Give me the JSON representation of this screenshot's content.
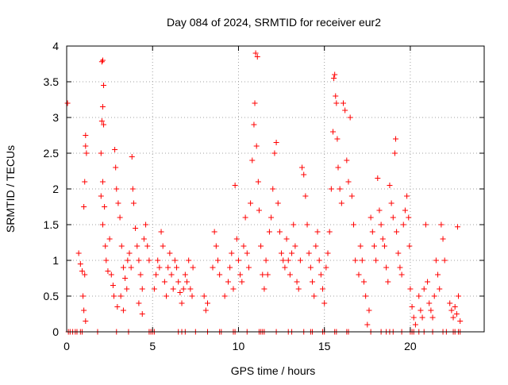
{
  "chart_data": {
    "type": "scatter",
    "title": "Day 084 of 2024, SRMTID for receiver eur2",
    "xlabel": "GPS time / hours",
    "ylabel": "SRMTID / TECUs",
    "xlim": [
      0,
      24.3
    ],
    "ylim": [
      0,
      4
    ],
    "x_ticks": [
      0,
      5,
      10,
      15,
      20
    ],
    "x_tick_labels": [
      "0",
      "5",
      "10",
      "15",
      "20"
    ],
    "y_ticks": [
      0,
      0.5,
      1,
      1.5,
      2,
      2.5,
      3,
      3.5,
      4
    ],
    "y_tick_labels": [
      "0",
      "0.5",
      "1",
      "1.5",
      "2",
      "2.5",
      "3",
      "3.5",
      "4"
    ],
    "grid": true,
    "marker": "plus",
    "series": [
      {
        "name": "SRMTID",
        "color": "#ff0000",
        "points": [
          [
            0.05,
            3.2
          ],
          [
            0.7,
            1.1
          ],
          [
            0.8,
            0.95
          ],
          [
            0.9,
            0.85
          ],
          [
            0.95,
            0.5
          ],
          [
            1.0,
            1.75
          ],
          [
            1.05,
            2.1
          ],
          [
            1.1,
            2.6
          ],
          [
            1.15,
            2.5
          ],
          [
            1.1,
            2.75
          ],
          [
            1.0,
            0.3
          ],
          [
            1.1,
            0.15
          ],
          [
            1.05,
            0.8
          ],
          [
            2.05,
            3.78
          ],
          [
            2.1,
            3.8
          ],
          [
            2.15,
            3.45
          ],
          [
            2.1,
            3.15
          ],
          [
            2.05,
            2.95
          ],
          [
            2.15,
            2.9
          ],
          [
            2.0,
            2.5
          ],
          [
            2.1,
            2.1
          ],
          [
            2.0,
            1.9
          ],
          [
            2.2,
            1.75
          ],
          [
            2.1,
            1.5
          ],
          [
            2.25,
            1.2
          ],
          [
            2.3,
            1.0
          ],
          [
            2.4,
            0.85
          ],
          [
            2.5,
            1.3
          ],
          [
            2.6,
            0.8
          ],
          [
            2.7,
            0.65
          ],
          [
            2.8,
            2.55
          ],
          [
            2.85,
            2.3
          ],
          [
            2.9,
            2.0
          ],
          [
            3.0,
            1.8
          ],
          [
            3.1,
            1.6
          ],
          [
            3.2,
            1.2
          ],
          [
            3.3,
            0.9
          ],
          [
            3.4,
            0.75
          ],
          [
            3.5,
            0.6
          ],
          [
            2.75,
            0.5
          ],
          [
            2.95,
            0.35
          ],
          [
            3.15,
            0.5
          ],
          [
            3.3,
            0.3
          ],
          [
            3.55,
            1.0
          ],
          [
            3.65,
            1.1
          ],
          [
            3.75,
            0.9
          ],
          [
            3.8,
            2.45
          ],
          [
            3.85,
            2.0
          ],
          [
            3.9,
            1.8
          ],
          [
            4.0,
            1.45
          ],
          [
            4.1,
            1.2
          ],
          [
            4.2,
            1.0
          ],
          [
            4.3,
            0.8
          ],
          [
            4.4,
            0.6
          ],
          [
            4.5,
            1.3
          ],
          [
            4.6,
            1.5
          ],
          [
            4.7,
            1.2
          ],
          [
            4.8,
            1.0
          ],
          [
            4.4,
            0.25
          ],
          [
            4.2,
            0.4
          ],
          [
            5.1,
            0.6
          ],
          [
            5.2,
            0.8
          ],
          [
            5.3,
            1.0
          ],
          [
            5.4,
            0.9
          ],
          [
            5.5,
            1.4
          ],
          [
            5.6,
            1.2
          ],
          [
            5.7,
            0.7
          ],
          [
            5.8,
            0.5
          ],
          [
            5.9,
            0.9
          ],
          [
            6.0,
            1.1
          ],
          [
            6.1,
            0.8
          ],
          [
            6.2,
            0.6
          ],
          [
            6.3,
            1.0
          ],
          [
            6.4,
            0.9
          ],
          [
            6.5,
            0.7
          ],
          [
            6.6,
            0.55
          ],
          [
            6.7,
            0.4
          ],
          [
            6.8,
            0.6
          ],
          [
            6.9,
            0.8
          ],
          [
            7.0,
            0.7
          ],
          [
            7.1,
            1.0
          ],
          [
            7.2,
            0.6
          ],
          [
            7.3,
            0.5
          ],
          [
            7.35,
            0.9
          ],
          [
            8.0,
            0.5
          ],
          [
            8.1,
            0.3
          ],
          [
            8.2,
            0.4
          ],
          [
            8.5,
            0.9
          ],
          [
            8.6,
            1.4
          ],
          [
            8.7,
            1.2
          ],
          [
            8.8,
            1.0
          ],
          [
            8.9,
            0.8
          ],
          [
            9.2,
            0.5
          ],
          [
            9.4,
            0.7
          ],
          [
            9.5,
            0.9
          ],
          [
            9.6,
            1.1
          ],
          [
            9.7,
            0.6
          ],
          [
            9.8,
            2.05
          ],
          [
            9.9,
            1.3
          ],
          [
            10.0,
            1.0
          ],
          [
            10.1,
            0.8
          ],
          [
            10.2,
            0.7
          ],
          [
            10.3,
            1.2
          ],
          [
            10.4,
            1.6
          ],
          [
            10.5,
            1.1
          ],
          [
            10.6,
            0.9
          ],
          [
            10.7,
            1.8
          ],
          [
            10.8,
            2.4
          ],
          [
            10.9,
            2.9
          ],
          [
            10.95,
            3.2
          ],
          [
            11.0,
            3.9
          ],
          [
            11.1,
            3.85
          ],
          [
            11.05,
            2.6
          ],
          [
            11.15,
            2.1
          ],
          [
            11.2,
            1.7
          ],
          [
            11.3,
            1.2
          ],
          [
            11.4,
            0.8
          ],
          [
            11.5,
            0.6
          ],
          [
            11.6,
            1.0
          ],
          [
            11.7,
            0.8
          ],
          [
            11.8,
            1.4
          ],
          [
            11.9,
            1.6
          ],
          [
            12.0,
            2.0
          ],
          [
            12.1,
            2.5
          ],
          [
            12.2,
            2.65
          ],
          [
            12.3,
            1.8
          ],
          [
            12.4,
            1.4
          ],
          [
            12.5,
            1.1
          ],
          [
            12.6,
            1.0
          ],
          [
            12.7,
            0.9
          ],
          [
            12.8,
            1.3
          ],
          [
            12.9,
            1.0
          ],
          [
            13.0,
            0.8
          ],
          [
            13.1,
            1.1
          ],
          [
            13.2,
            1.5
          ],
          [
            13.3,
            1.2
          ],
          [
            13.4,
            0.7
          ],
          [
            13.5,
            0.6
          ],
          [
            13.6,
            1.0
          ],
          [
            13.7,
            2.3
          ],
          [
            13.8,
            2.2
          ],
          [
            13.9,
            1.9
          ],
          [
            14.0,
            1.5
          ],
          [
            14.1,
            1.1
          ],
          [
            14.2,
            0.9
          ],
          [
            14.3,
            0.7
          ],
          [
            14.4,
            0.5
          ],
          [
            14.5,
            1.2
          ],
          [
            14.6,
            1.4
          ],
          [
            14.7,
            1.0
          ],
          [
            14.8,
            0.8
          ],
          [
            14.9,
            0.6
          ],
          [
            15.0,
            0.4
          ],
          [
            15.1,
            0.9
          ],
          [
            15.2,
            1.1
          ],
          [
            15.3,
            1.4
          ],
          [
            15.4,
            2.0
          ],
          [
            15.5,
            2.8
          ],
          [
            15.55,
            3.55
          ],
          [
            15.6,
            3.6
          ],
          [
            15.65,
            3.3
          ],
          [
            15.7,
            3.2
          ],
          [
            15.75,
            2.7
          ],
          [
            15.8,
            2.3
          ],
          [
            15.9,
            2.0
          ],
          [
            16.0,
            1.8
          ],
          [
            16.1,
            3.2
          ],
          [
            16.2,
            3.1
          ],
          [
            16.3,
            2.4
          ],
          [
            16.4,
            2.1
          ],
          [
            16.5,
            3.0
          ],
          [
            16.6,
            1.9
          ],
          [
            16.7,
            1.5
          ],
          [
            16.8,
            1.0
          ],
          [
            17.0,
            0.8
          ],
          [
            17.1,
            1.2
          ],
          [
            17.2,
            1.0
          ],
          [
            17.3,
            0.7
          ],
          [
            17.4,
            0.5
          ],
          [
            17.5,
            0.1
          ],
          [
            17.6,
            0.3
          ],
          [
            17.7,
            1.6
          ],
          [
            17.8,
            1.4
          ],
          [
            17.9,
            1.2
          ],
          [
            18.0,
            1.0
          ],
          [
            18.1,
            2.15
          ],
          [
            18.2,
            1.7
          ],
          [
            18.3,
            1.5
          ],
          [
            18.4,
            1.3
          ],
          [
            18.5,
            1.2
          ],
          [
            18.6,
            0.9
          ],
          [
            18.7,
            0.7
          ],
          [
            18.8,
            2.05
          ],
          [
            18.9,
            1.8
          ],
          [
            19.0,
            1.6
          ],
          [
            19.1,
            2.5
          ],
          [
            19.15,
            2.7
          ],
          [
            19.2,
            1.4
          ],
          [
            19.3,
            1.1
          ],
          [
            19.4,
            0.9
          ],
          [
            19.5,
            0.8
          ],
          [
            19.6,
            1.5
          ],
          [
            19.7,
            1.7
          ],
          [
            19.8,
            1.9
          ],
          [
            19.9,
            1.6
          ],
          [
            19.95,
            1.2
          ],
          [
            20.0,
            0.6
          ],
          [
            20.1,
            0.35
          ],
          [
            20.2,
            0.2
          ],
          [
            20.3,
            0.1
          ],
          [
            20.5,
            0.5
          ],
          [
            20.6,
            0.3
          ],
          [
            20.7,
            0.2
          ],
          [
            20.8,
            0.6
          ],
          [
            20.9,
            1.5
          ],
          [
            21.0,
            0.7
          ],
          [
            21.1,
            0.4
          ],
          [
            21.2,
            0.3
          ],
          [
            21.3,
            0.2
          ],
          [
            21.4,
            0.5
          ],
          [
            21.5,
            1.0
          ],
          [
            21.6,
            0.8
          ],
          [
            21.7,
            0.6
          ],
          [
            21.8,
            1.5
          ],
          [
            21.9,
            1.3
          ],
          [
            22.0,
            1.0
          ],
          [
            22.3,
            0.4
          ],
          [
            22.4,
            0.3
          ],
          [
            22.5,
            0.2
          ],
          [
            22.6,
            0.35
          ],
          [
            22.7,
            0.25
          ],
          [
            22.75,
            1.47
          ],
          [
            22.8,
            0.5
          ],
          [
            22.9,
            0.15
          ]
        ],
        "zero_values": [
          0.1,
          0.2,
          0.35,
          0.5,
          0.6,
          0.8,
          0.9,
          1.8,
          2.9,
          3.6,
          4.8,
          4.9,
          5.0,
          5.1,
          6.5,
          6.7,
          6.9,
          7.5,
          8.2,
          8.9,
          9.0,
          9.7,
          9.8,
          10.5,
          11.2,
          11.3,
          11.4,
          11.5,
          12.2,
          12.9,
          13.1,
          13.8,
          14.2,
          14.3,
          14.9,
          15.0,
          15.6,
          15.7,
          16.3,
          16.4,
          17.7,
          18.3,
          18.6,
          18.8,
          19.0,
          19.5,
          20.0,
          20.1,
          20.2,
          20.5,
          20.8,
          21.3,
          21.9,
          22.1,
          22.5,
          22.6,
          22.8,
          22.9
        ]
      }
    ]
  }
}
